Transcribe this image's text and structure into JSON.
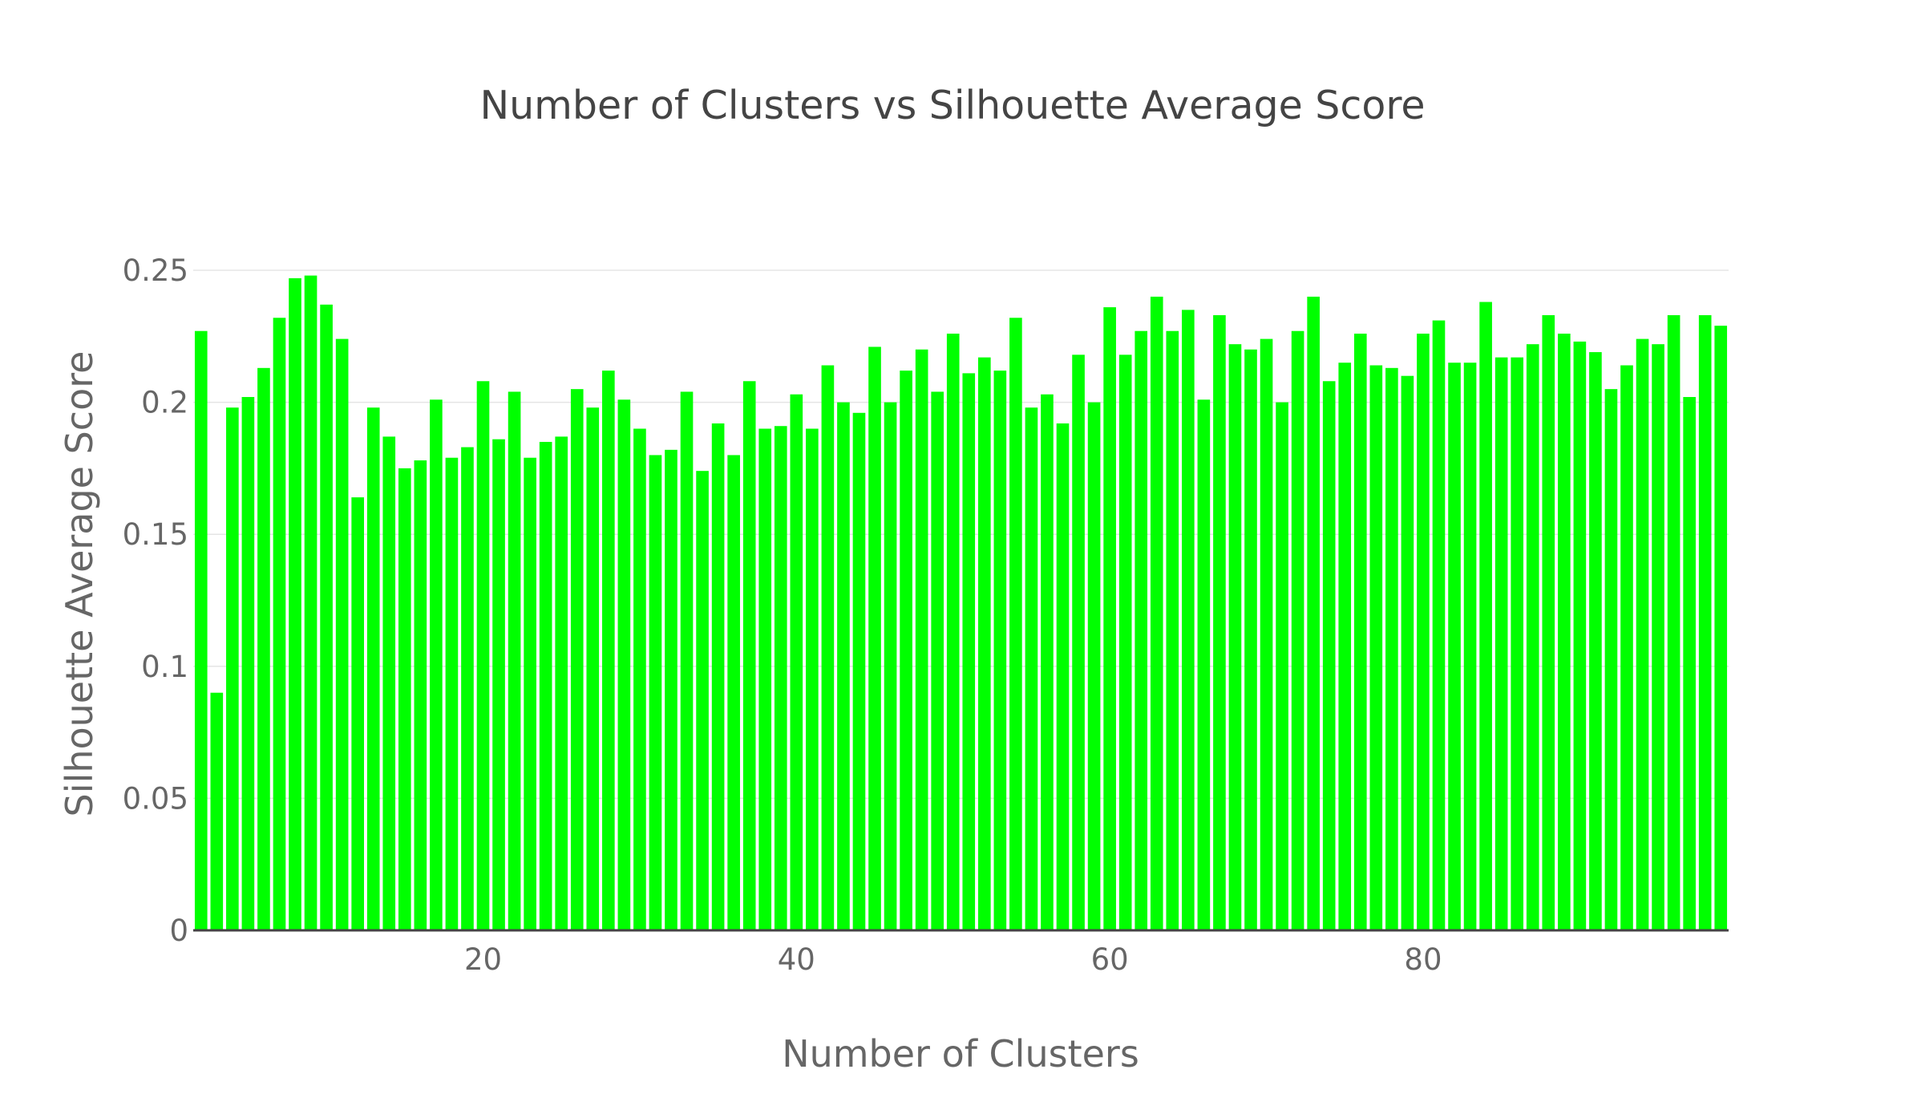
{
  "chart_data": {
    "type": "bar",
    "title": "Number of Clusters vs Silhouette Average Score",
    "xlabel": "Number of Clusters",
    "ylabel": "Silhouette Average Score",
    "bar_color": "#00ff00",
    "grid": true,
    "ylim": [
      0,
      0.25
    ],
    "xlim": [
      1.5,
      99.5
    ],
    "y_ticks": [
      0,
      0.05,
      0.1,
      0.15,
      0.2,
      0.25
    ],
    "y_tick_labels": [
      "0",
      "0.05",
      "0.1",
      "0.15",
      "0.2",
      "0.25"
    ],
    "x_ticks": [
      20,
      40,
      60,
      80
    ],
    "x_tick_labels": [
      "20",
      "40",
      "60",
      "80"
    ],
    "x": [
      2,
      3,
      4,
      5,
      6,
      7,
      8,
      9,
      10,
      11,
      12,
      13,
      14,
      15,
      16,
      17,
      18,
      19,
      20,
      21,
      22,
      23,
      24,
      25,
      26,
      27,
      28,
      29,
      30,
      31,
      32,
      33,
      34,
      35,
      36,
      37,
      38,
      39,
      40,
      41,
      42,
      43,
      44,
      45,
      46,
      47,
      48,
      49,
      50,
      51,
      52,
      53,
      54,
      55,
      56,
      57,
      58,
      59,
      60,
      61,
      62,
      63,
      64,
      65,
      66,
      67,
      68,
      69,
      70,
      71,
      72,
      73,
      74,
      75,
      76,
      77,
      78,
      79,
      80,
      81,
      82,
      83,
      84,
      85,
      86,
      87,
      88,
      89,
      90,
      91,
      92,
      93,
      94,
      95,
      96,
      97,
      98,
      99
    ],
    "values": [
      0.227,
      0.09,
      0.198,
      0.202,
      0.213,
      0.232,
      0.247,
      0.248,
      0.237,
      0.224,
      0.164,
      0.198,
      0.187,
      0.175,
      0.178,
      0.201,
      0.179,
      0.183,
      0.208,
      0.186,
      0.204,
      0.179,
      0.185,
      0.187,
      0.205,
      0.198,
      0.212,
      0.201,
      0.19,
      0.18,
      0.182,
      0.204,
      0.174,
      0.192,
      0.18,
      0.208,
      0.19,
      0.191,
      0.203,
      0.19,
      0.214,
      0.2,
      0.196,
      0.221,
      0.2,
      0.212,
      0.22,
      0.204,
      0.226,
      0.211,
      0.217,
      0.212,
      0.232,
      0.198,
      0.203,
      0.192,
      0.218,
      0.2,
      0.236,
      0.218,
      0.227,
      0.24,
      0.227,
      0.235,
      0.201,
      0.233,
      0.222,
      0.22,
      0.224,
      0.2,
      0.227,
      0.24,
      0.208,
      0.215,
      0.226,
      0.214,
      0.213,
      0.21,
      0.226,
      0.231,
      0.215,
      0.215,
      0.238,
      0.217,
      0.217,
      0.222,
      0.233,
      0.226,
      0.223,
      0.219,
      0.205,
      0.214,
      0.224,
      0.222,
      0.233,
      0.202,
      0.233,
      0.229
    ]
  }
}
